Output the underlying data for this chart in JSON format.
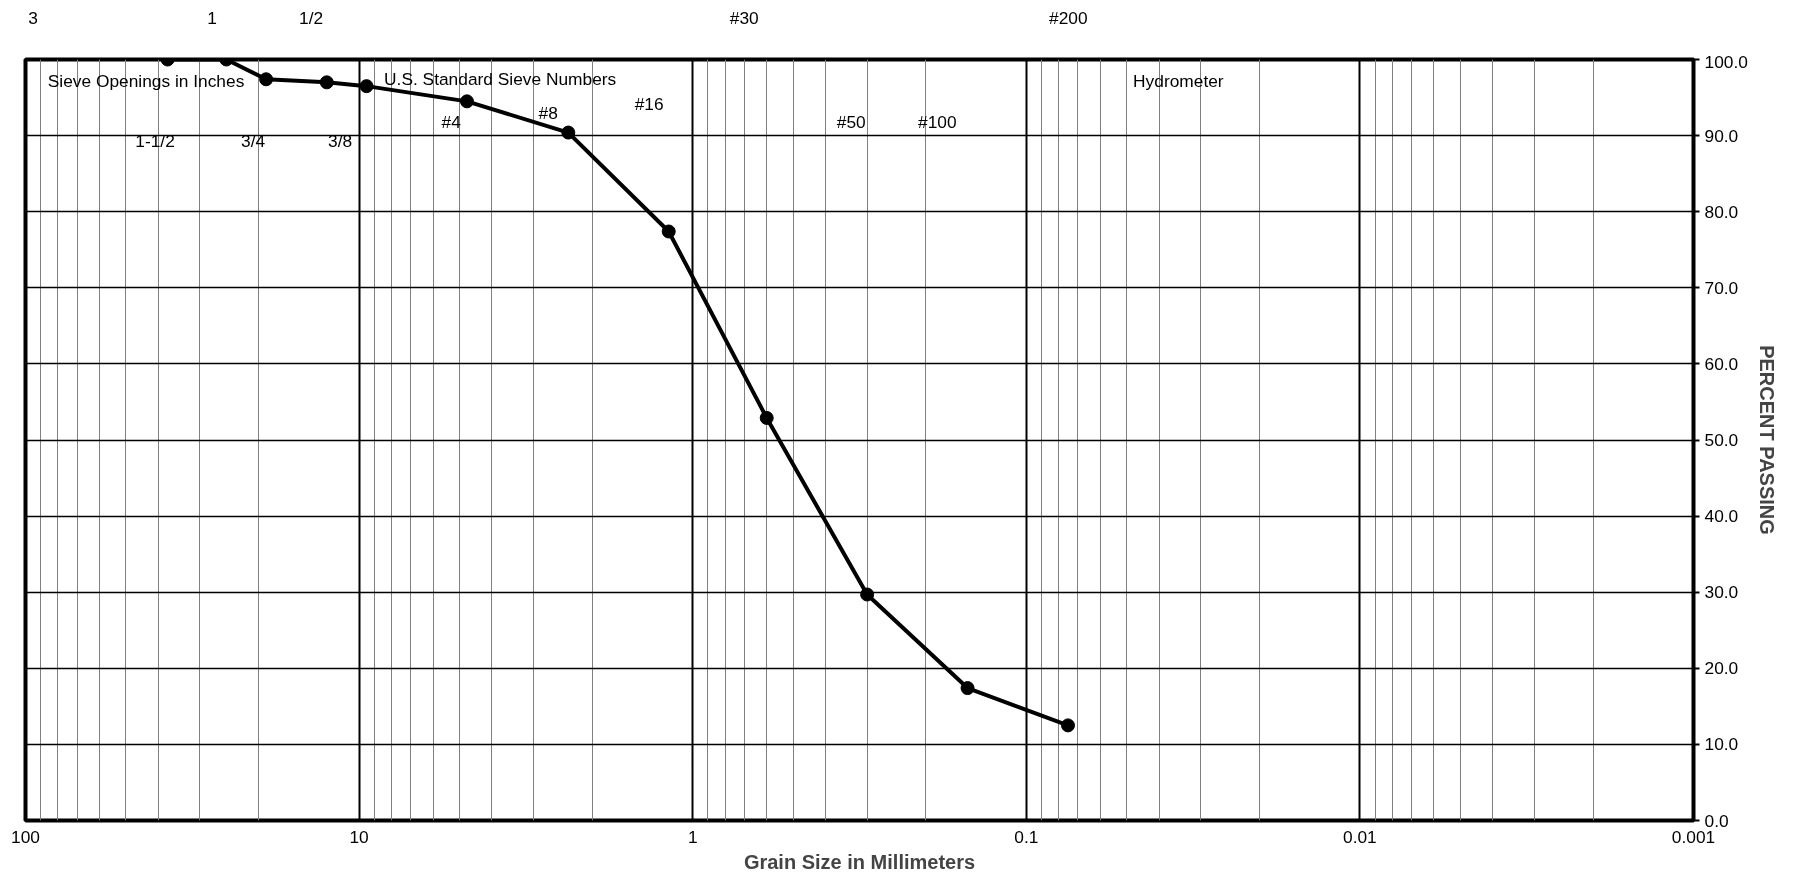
{
  "chart_data": {
    "type": "line",
    "xlabel": "Grain Size in Millimeters",
    "ylabel": "PERCENT PASSING",
    "log": "x",
    "marker": "circle",
    "line_style": "solid",
    "grid": true,
    "tick_labels": "xy",
    "x": [
      37.5,
      25,
      19,
      12.5,
      9.5,
      4.75,
      2.36,
      1.18,
      0.6,
      0.3,
      0.15,
      0.075
    ],
    "series": [
      {
        "color": "#000000",
        "values": [
          100,
          100,
          97.4,
          97.0,
          96.5,
          94.5,
          90.4,
          77.4,
          52.9,
          29.7,
          17.4,
          12.5
        ]
      }
    ],
    "xlim": [
      100,
      0.001
    ],
    "xticks": [
      100,
      10,
      1,
      0.1,
      0.01,
      0.001
    ],
    "ylim": [
      0,
      100
    ],
    "yticks": [
      {
        "value": 0,
        "label": "0.0"
      },
      {
        "value": 10,
        "label": "10.0"
      },
      {
        "value": 20,
        "label": "20.0"
      },
      {
        "value": 30,
        "label": "30.0"
      },
      {
        "value": 40,
        "label": "40.0"
      },
      {
        "value": 50,
        "label": "50.0"
      },
      {
        "value": 60,
        "label": "60.0"
      },
      {
        "value": 70,
        "label": "70.0"
      },
      {
        "value": 80,
        "label": "80.0"
      },
      {
        "value": 90,
        "label": "90.0"
      },
      {
        "value": 100,
        "label": "100.0"
      }
    ],
    "annotations": [
      "3",
      "1",
      "1/2",
      "#30",
      "#200",
      "Sieve Openings in Inches",
      "U.S. Standard Sieve Numbers",
      "Hydrometer",
      "1-1/2",
      "3/4",
      "3/8",
      "#4",
      "#8",
      "#16",
      "#50",
      "#100"
    ]
  }
}
